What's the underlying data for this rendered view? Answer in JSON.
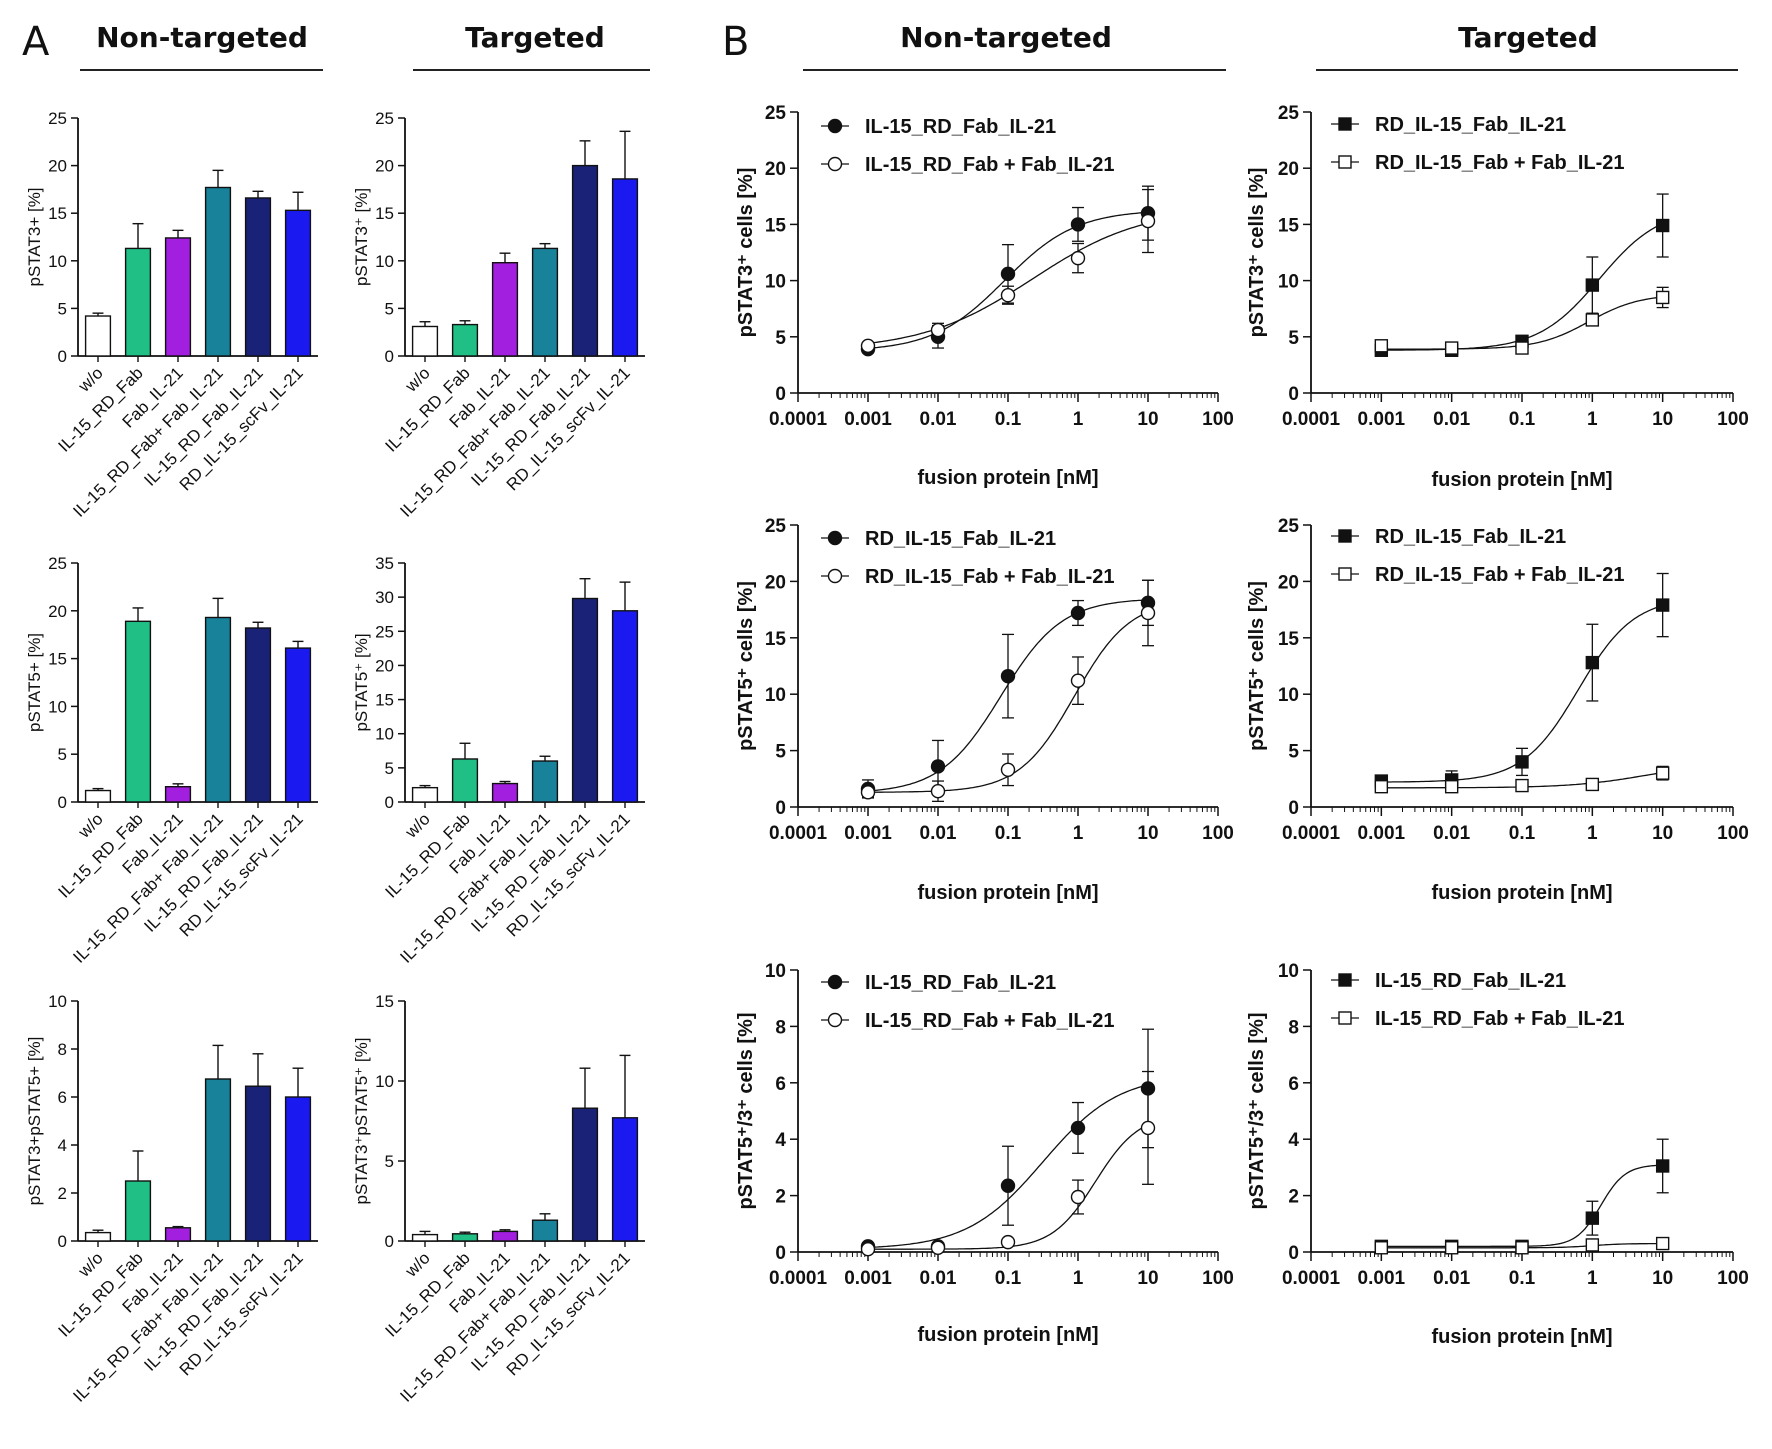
{
  "figure": {
    "panel_a_letter": "A",
    "panel_b_letter": "B",
    "headers": {
      "a_nontargeted": "Non-targeted",
      "a_targeted": "Targeted",
      "b_nontargeted": "Non-targeted",
      "b_targeted": "Targeted"
    }
  },
  "chart_data": [
    {
      "id": "A1",
      "type": "bar",
      "title": "Non-targeted",
      "ylabel": "pSTAT3+ [%]",
      "ylim": [
        0,
        25
      ],
      "yticks": [
        0,
        5,
        10,
        15,
        20,
        25
      ],
      "categories": [
        "w/o",
        "IL-15_RD_Fab",
        "Fab_IL-21",
        "IL-15_RD_Fab+ Fab_IL-21",
        "IL-15_RD_Fab_IL-21",
        "RD_IL-15_scFv_IL-21"
      ],
      "values": [
        4.2,
        11.3,
        12.4,
        17.7,
        16.6,
        15.3
      ],
      "errors": [
        0.3,
        2.6,
        0.8,
        1.8,
        0.7,
        1.9
      ],
      "colors": [
        "#ffffff",
        "#1fbf86",
        "#a21fe0",
        "#18829a",
        "#1a2278",
        "#1a1af0"
      ]
    },
    {
      "id": "A2",
      "type": "bar",
      "title": "Targeted",
      "ylabel": "pSTAT3⁺ [%]",
      "ylim": [
        0,
        25
      ],
      "yticks": [
        0,
        5,
        10,
        15,
        20,
        25
      ],
      "categories": [
        "w/o",
        "IL-15_RD_Fab",
        "Fab_IL-21",
        "IL-15_RD_Fab+ Fab_IL-21",
        "IL-15_RD_Fab_IL-21",
        "RD_IL-15_scFv_IL-21"
      ],
      "values": [
        3.1,
        3.3,
        9.8,
        11.3,
        20.0,
        18.6
      ],
      "errors": [
        0.5,
        0.4,
        1.0,
        0.5,
        2.6,
        5.0
      ],
      "colors": [
        "#ffffff",
        "#1fbf86",
        "#a21fe0",
        "#18829a",
        "#1a2278",
        "#1a1af0"
      ]
    },
    {
      "id": "A3",
      "type": "bar",
      "title": "Non-targeted",
      "ylabel": "pSTAT5+ [%]",
      "ylim": [
        0,
        25
      ],
      "yticks": [
        0,
        5,
        10,
        15,
        20,
        25
      ],
      "categories": [
        "w/o",
        "IL-15_RD_Fab",
        "Fab_IL-21",
        "IL-15_RD_Fab+ Fab_IL-21",
        "IL-15_RD_Fab_IL-21",
        "RD_IL-15_scFv_IL-21"
      ],
      "values": [
        1.2,
        18.9,
        1.6,
        19.3,
        18.2,
        16.1
      ],
      "errors": [
        0.2,
        1.4,
        0.3,
        2.0,
        0.6,
        0.7
      ],
      "colors": [
        "#ffffff",
        "#1fbf86",
        "#a21fe0",
        "#18829a",
        "#1a2278",
        "#1a1af0"
      ]
    },
    {
      "id": "A4",
      "type": "bar",
      "title": "Targeted",
      "ylabel": "pSTAT5⁺ [%]",
      "ylim": [
        0,
        35
      ],
      "yticks": [
        0,
        5,
        10,
        15,
        20,
        25,
        30,
        35
      ],
      "categories": [
        "w/o",
        "IL-15_RD_Fab",
        "Fab_IL-21",
        "IL-15_RD_Fab+ Fab_IL-21",
        "IL-15_RD_Fab_IL-21",
        "RD_IL-15_scFv_IL-21"
      ],
      "values": [
        2.1,
        6.3,
        2.7,
        6.0,
        29.8,
        28.0
      ],
      "errors": [
        0.3,
        2.3,
        0.3,
        0.7,
        2.9,
        4.2
      ],
      "colors": [
        "#ffffff",
        "#1fbf86",
        "#a21fe0",
        "#18829a",
        "#1a2278",
        "#1a1af0"
      ]
    },
    {
      "id": "A5",
      "type": "bar",
      "title": "Non-targeted",
      "ylabel": "pSTAT3+pSTAT5+ [%]",
      "ylim": [
        0,
        10
      ],
      "yticks": [
        0,
        2,
        4,
        6,
        8,
        10
      ],
      "categories": [
        "w/o",
        "IL-15_RD_Fab",
        "Fab_IL-21",
        "IL-15_RD_Fab+ Fab_IL-21",
        "IL-15_RD_Fab_IL-21",
        "RD_IL-15_scFv_IL-21"
      ],
      "values": [
        0.35,
        2.5,
        0.55,
        6.75,
        6.45,
        6.0
      ],
      "errors": [
        0.1,
        1.25,
        0.05,
        1.4,
        1.35,
        1.2
      ],
      "colors": [
        "#ffffff",
        "#1fbf86",
        "#a21fe0",
        "#18829a",
        "#1a2278",
        "#1a1af0"
      ]
    },
    {
      "id": "A6",
      "type": "bar",
      "title": "Targeted",
      "ylabel": "pSTAT3⁺pSTAT5⁺ [%]",
      "ylim": [
        0,
        15
      ],
      "yticks": [
        0,
        5,
        10,
        15
      ],
      "categories": [
        "w/o",
        "IL-15_RD_Fab",
        "Fab_IL-21",
        "IL-15_RD_Fab+ Fab_IL-21",
        "IL-15_RD_Fab_IL-21",
        "RD_IL-15_scFv_IL-21"
      ],
      "values": [
        0.4,
        0.45,
        0.6,
        1.3,
        8.3,
        7.7
      ],
      "errors": [
        0.2,
        0.1,
        0.1,
        0.4,
        2.5,
        3.9
      ],
      "colors": [
        "#ffffff",
        "#1fbf86",
        "#a21fe0",
        "#18829a",
        "#1a2278",
        "#1a1af0"
      ]
    },
    {
      "id": "B1",
      "type": "line",
      "title": "Non-targeted",
      "ylabel": "pSTAT3⁺ cells [%]",
      "xlabel": "fusion protein [nM]",
      "ylim": [
        0,
        25
      ],
      "yticks": [
        0,
        5,
        10,
        15,
        20,
        25
      ],
      "xscale": "log",
      "xlim": [
        0.0001,
        100
      ],
      "xticks": [
        "0.0001",
        "0.001",
        "0.01",
        "0.1",
        "1",
        "10",
        "100"
      ],
      "marker": "circle",
      "series": [
        {
          "name": "IL-15_RD_Fab_IL-21",
          "filled": true,
          "x": [
            0.001,
            0.01,
            0.1,
            1,
            10
          ],
          "y": [
            3.9,
            5.0,
            10.6,
            15.0,
            16.0
          ],
          "err": [
            0.3,
            1.0,
            2.6,
            1.5,
            2.4
          ],
          "fit": {
            "bottom": 3.7,
            "top": 16.3,
            "logec50": -1.05,
            "hill": 0.85
          }
        },
        {
          "name": "IL-15_RD_Fab + Fab_IL-21",
          "filled": false,
          "x": [
            0.001,
            0.01,
            0.1,
            1,
            10
          ],
          "y": [
            4.2,
            5.6,
            8.7,
            12.0,
            15.3
          ],
          "err": [
            0.3,
            0.6,
            0.8,
            1.3,
            2.8
          ],
          "fit": {
            "bottom": 3.8,
            "top": 16.5,
            "logec50": -0.65,
            "hill": 0.55
          }
        }
      ]
    },
    {
      "id": "B2",
      "type": "line",
      "title": "Targeted",
      "ylabel": "pSTAT3⁺ cells [%]",
      "xlabel": "fusion protein [nM]",
      "ylim": [
        0,
        25
      ],
      "yticks": [
        0,
        5,
        10,
        15,
        20,
        25
      ],
      "xscale": "log",
      "xlim": [
        0.0001,
        100
      ],
      "xticks": [
        "0.0001",
        "0.001",
        "0.01",
        "0.1",
        "1",
        "10",
        "100"
      ],
      "marker": "square",
      "series": [
        {
          "name": "RD_IL-15_Fab_IL-21",
          "filled": true,
          "x": [
            0.001,
            0.01,
            0.1,
            1,
            10
          ],
          "y": [
            3.8,
            3.8,
            4.6,
            9.6,
            14.9
          ],
          "err": [
            0.4,
            0.3,
            0.3,
            2.5,
            2.8
          ],
          "fit": {
            "bottom": 3.8,
            "top": 16.5,
            "logec50": 0.1,
            "hill": 1.0
          }
        },
        {
          "name": "RD_IL-15_Fab + Fab_IL-21",
          "filled": false,
          "x": [
            0.001,
            0.01,
            0.1,
            1,
            10
          ],
          "y": [
            4.2,
            4.0,
            4.0,
            6.5,
            8.5
          ],
          "err": [
            0.5,
            0.3,
            0.2,
            0.5,
            0.9
          ],
          "fit": {
            "bottom": 3.9,
            "top": 8.8,
            "logec50": -0.05,
            "hill": 1.2
          }
        }
      ]
    },
    {
      "id": "B3",
      "type": "line",
      "title": "Non-targeted",
      "ylabel": "pSTAT5⁺ cells [%]",
      "xlabel": "fusion protein [nM]",
      "ylim": [
        0,
        25
      ],
      "yticks": [
        0,
        5,
        10,
        15,
        20,
        25
      ],
      "xscale": "log",
      "xlim": [
        0.0001,
        100
      ],
      "xticks": [
        "0.0001",
        "0.001",
        "0.01",
        "0.1",
        "1",
        "10",
        "100"
      ],
      "marker": "circle",
      "series": [
        {
          "name": "RD_IL-15_Fab_IL-21",
          "filled": true,
          "x": [
            0.001,
            0.01,
            0.1,
            1,
            10
          ],
          "y": [
            1.6,
            3.6,
            11.6,
            17.2,
            18.1
          ],
          "err": [
            0.8,
            2.3,
            3.7,
            1.1,
            2.0
          ],
          "fit": {
            "bottom": 1.2,
            "top": 18.5,
            "logec50": -1.1,
            "hill": 1.0
          }
        },
        {
          "name": "RD_IL-15_Fab + Fab_IL-21",
          "filled": false,
          "x": [
            0.001,
            0.01,
            0.1,
            1,
            10
          ],
          "y": [
            1.3,
            1.4,
            3.3,
            11.2,
            17.2
          ],
          "err": [
            0.4,
            0.9,
            1.4,
            2.1,
            2.9
          ],
          "fit": {
            "bottom": 1.3,
            "top": 18.4,
            "logec50": -0.05,
            "hill": 1.1
          }
        }
      ]
    },
    {
      "id": "B4",
      "type": "line",
      "title": "Targeted",
      "ylabel": "pSTAT5⁺ cells [%]",
      "xlabel": "fusion protein [nM]",
      "ylim": [
        0,
        25
      ],
      "yticks": [
        0,
        5,
        10,
        15,
        20,
        25
      ],
      "xscale": "log",
      "xlim": [
        0.0001,
        100
      ],
      "xticks": [
        "0.0001",
        "0.001",
        "0.01",
        "0.1",
        "1",
        "10",
        "100"
      ],
      "marker": "square",
      "series": [
        {
          "name": "RD_IL-15_Fab_IL-21",
          "filled": true,
          "x": [
            0.001,
            0.01,
            0.1,
            1,
            10
          ],
          "y": [
            2.3,
            2.4,
            4.0,
            12.8,
            17.9
          ],
          "err": [
            0.5,
            0.8,
            1.2,
            3.4,
            2.8
          ],
          "fit": {
            "bottom": 2.2,
            "top": 18.6,
            "logec50": -0.2,
            "hill": 1.1
          }
        },
        {
          "name": "RD_IL-15_Fab + Fab_IL-21",
          "filled": false,
          "x": [
            0.001,
            0.01,
            0.1,
            1,
            10
          ],
          "y": [
            1.8,
            1.8,
            1.9,
            2.0,
            3.0
          ],
          "err": [
            0.3,
            0.2,
            0.2,
            0.2,
            0.6
          ],
          "fit": {
            "bottom": 1.7,
            "top": 4.0,
            "logec50": 0.8,
            "hill": 0.8
          }
        }
      ]
    },
    {
      "id": "B5",
      "type": "line",
      "title": "Non-targeted",
      "ylabel": "pSTAT5⁺/3⁺ cells [%]",
      "xlabel": "fusion protein [nM]",
      "ylim": [
        0,
        10
      ],
      "yticks": [
        0,
        2,
        4,
        6,
        8,
        10
      ],
      "xscale": "log",
      "xlim": [
        0.0001,
        100
      ],
      "xticks": [
        "0.0001",
        "0.001",
        "0.01",
        "0.1",
        "1",
        "10",
        "100"
      ],
      "marker": "circle",
      "series": [
        {
          "name": "IL-15_RD_Fab_IL-21",
          "filled": true,
          "x": [
            0.001,
            0.01,
            0.1,
            1,
            10
          ],
          "y": [
            0.2,
            0.2,
            2.35,
            4.4,
            5.8
          ],
          "err": [
            0.05,
            0.05,
            1.4,
            0.9,
            2.1
          ],
          "fit": {
            "bottom": 0.1,
            "top": 6.3,
            "logec50": -0.5,
            "hill": 0.8
          }
        },
        {
          "name": "IL-15_RD_Fab + Fab_IL-21",
          "filled": false,
          "x": [
            0.001,
            0.01,
            0.1,
            1,
            10
          ],
          "y": [
            0.1,
            0.15,
            0.35,
            1.95,
            4.4
          ],
          "err": [
            0.05,
            0.05,
            0.05,
            0.6,
            2.0
          ],
          "fit": {
            "bottom": 0.1,
            "top": 4.9,
            "logec50": 0.25,
            "hill": 1.4
          }
        }
      ]
    },
    {
      "id": "B6",
      "type": "line",
      "title": "Targeted",
      "ylabel": "pSTAT5⁺/3⁺ cells [%]",
      "xlabel": "fusion protein [nM]",
      "ylim": [
        0,
        10
      ],
      "yticks": [
        0,
        2,
        4,
        6,
        8,
        10
      ],
      "xscale": "log",
      "xlim": [
        0.0001,
        100
      ],
      "xticks": [
        "0.0001",
        "0.001",
        "0.01",
        "0.1",
        "1",
        "10",
        "100"
      ],
      "marker": "square",
      "series": [
        {
          "name": "IL-15_RD_Fab_IL-21",
          "filled": true,
          "x": [
            0.001,
            0.01,
            0.1,
            1,
            10
          ],
          "y": [
            0.2,
            0.2,
            0.2,
            1.2,
            3.05
          ],
          "err": [
            0.05,
            0.05,
            0.05,
            0.6,
            0.95
          ],
          "fit": {
            "bottom": 0.2,
            "top": 3.1,
            "logec50": 0.12,
            "hill": 2.5
          }
        },
        {
          "name": "IL-15_RD_Fab + Fab_IL-21",
          "filled": false,
          "x": [
            0.001,
            0.01,
            0.1,
            1,
            10
          ],
          "y": [
            0.15,
            0.15,
            0.15,
            0.25,
            0.3
          ],
          "err": [
            0.05,
            0.05,
            0.05,
            0.05,
            0.05
          ],
          "fit": {
            "bottom": 0.15,
            "top": 0.3,
            "logec50": 0.0,
            "hill": 2.0
          }
        }
      ]
    }
  ]
}
